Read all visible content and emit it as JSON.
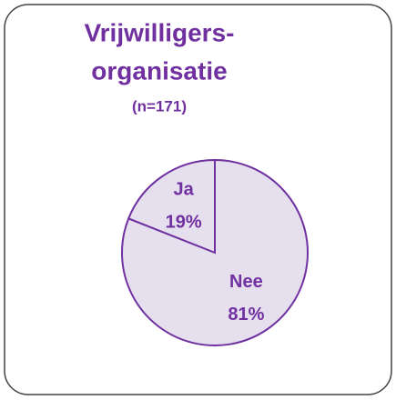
{
  "chart_data": {
    "type": "pie",
    "title": [
      "Vrijwilligers-",
      "organisatie"
    ],
    "subtitle": "(n=171)",
    "categories": [
      "Ja",
      "Nee"
    ],
    "values": [
      19,
      81
    ],
    "value_labels": [
      "19%",
      "81%"
    ],
    "color": "#e6e0ee",
    "edge_color": "#7030a0"
  }
}
